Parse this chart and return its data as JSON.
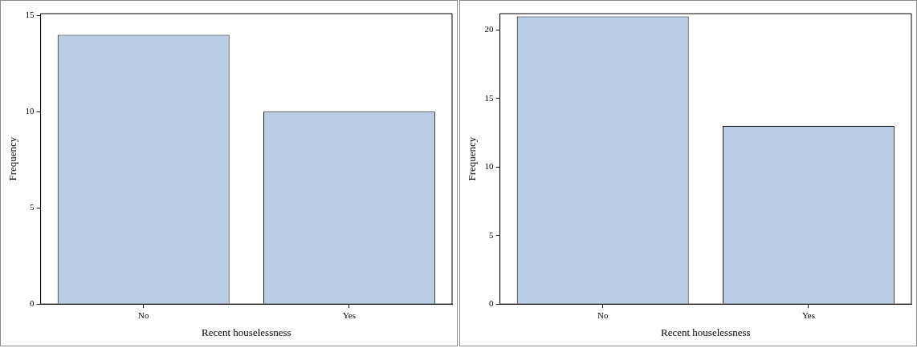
{
  "chart_data": [
    {
      "type": "bar",
      "xlabel": "Recent houselessness",
      "ylabel": "Frequency",
      "categories": [
        "No",
        "Yes"
      ],
      "values": [
        14,
        10
      ],
      "color": "#b9cde5",
      "ylim": [
        0,
        15.1
      ],
      "yticks": [
        0,
        5,
        10,
        15
      ]
    },
    {
      "type": "bar",
      "xlabel": "Recent houselessness",
      "ylabel": "Frequency",
      "categories": [
        "No",
        "Yes"
      ],
      "values": [
        21,
        13
      ],
      "color": "#b9cde5",
      "ylim": [
        0,
        21.2
      ],
      "yticks": [
        0,
        5,
        10,
        15,
        20
      ]
    }
  ]
}
